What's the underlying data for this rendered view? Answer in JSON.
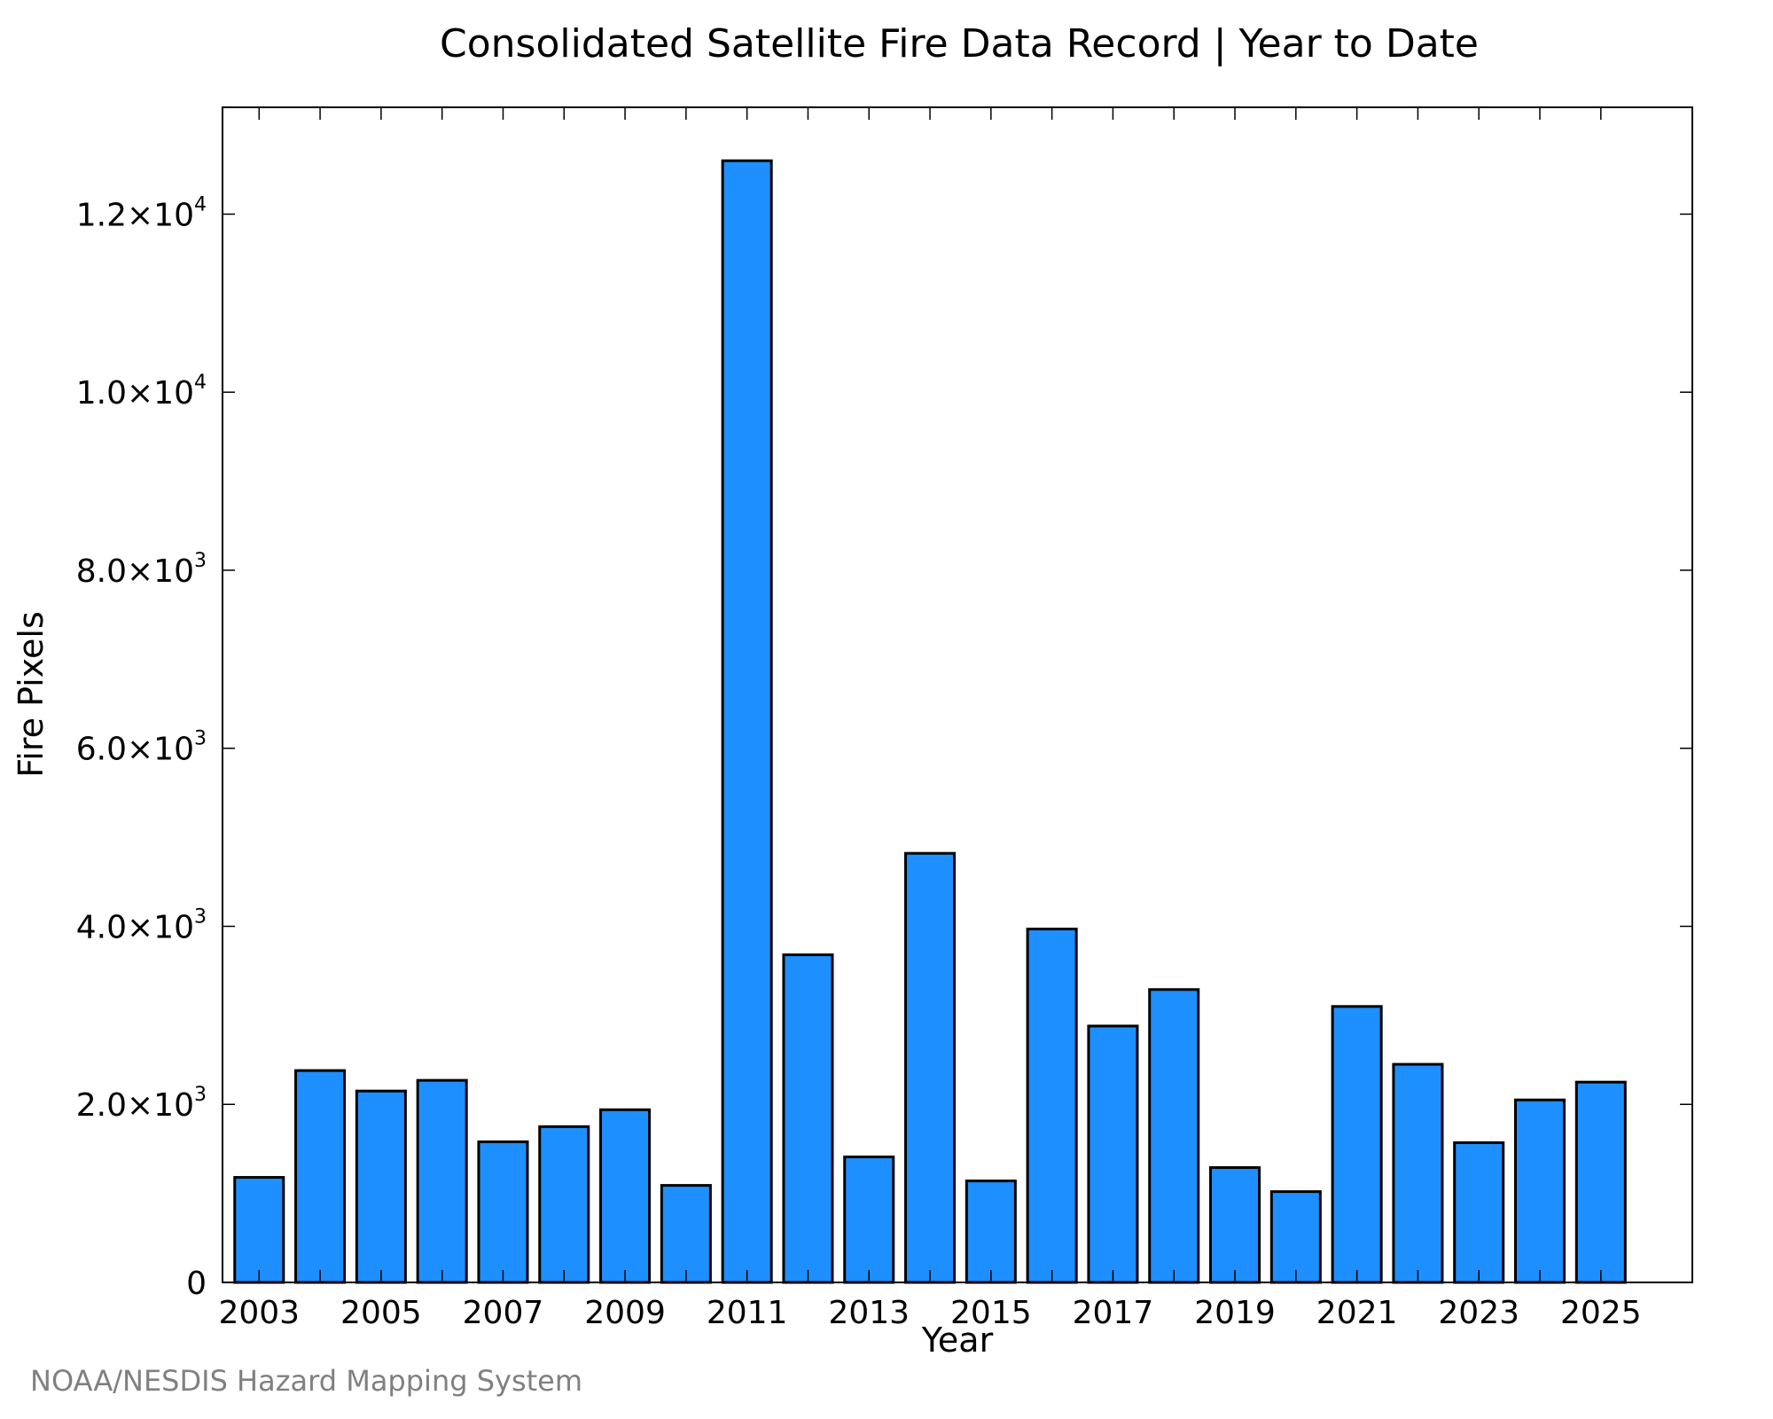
{
  "chart_data": {
    "type": "bar",
    "title": "Consolidated Satellite Fire Data Record | Year to Date",
    "xlabel": "Year",
    "ylabel": "Fire Pixels",
    "categories": [
      "2003",
      "2004",
      "2005",
      "2006",
      "2007",
      "2008",
      "2009",
      "2010",
      "2011",
      "2012",
      "2013",
      "2014",
      "2015",
      "2016",
      "2017",
      "2018",
      "2019",
      "2020",
      "2021",
      "2022",
      "2023",
      "2024",
      "2025"
    ],
    "values": [
      1180,
      2380,
      2150,
      2270,
      1580,
      1750,
      1940,
      1090,
      12600,
      3680,
      1410,
      4820,
      1140,
      3970,
      2880,
      3290,
      1290,
      1020,
      3100,
      2450,
      1570,
      2050,
      2250
    ],
    "ylim": [
      0,
      13200
    ],
    "xlim": [
      2002.4,
      2026.5
    ],
    "xticks": [
      {
        "value": 2003,
        "label": "2003"
      },
      {
        "value": 2005,
        "label": "2005"
      },
      {
        "value": 2007,
        "label": "2007"
      },
      {
        "value": 2009,
        "label": "2009"
      },
      {
        "value": 2011,
        "label": "2011"
      },
      {
        "value": 2013,
        "label": "2013"
      },
      {
        "value": 2015,
        "label": "2015"
      },
      {
        "value": 2017,
        "label": "2017"
      },
      {
        "value": 2019,
        "label": "2019"
      },
      {
        "value": 2021,
        "label": "2021"
      },
      {
        "value": 2023,
        "label": "2023"
      },
      {
        "value": 2025,
        "label": "2025"
      }
    ],
    "yticks": [
      {
        "value": 0,
        "mantissa": "0",
        "exponent": ""
      },
      {
        "value": 2000,
        "mantissa": "2.0×10",
        "exponent": "3"
      },
      {
        "value": 4000,
        "mantissa": "4.0×10",
        "exponent": "3"
      },
      {
        "value": 6000,
        "mantissa": "6.0×10",
        "exponent": "3"
      },
      {
        "value": 8000,
        "mantissa": "8.0×10",
        "exponent": "3"
      },
      {
        "value": 10000,
        "mantissa": "1.0×10",
        "exponent": "4"
      },
      {
        "value": 12000,
        "mantissa": "1.2×10",
        "exponent": "4"
      }
    ],
    "bar_color": "#1e8fff",
    "bar_edge_color": "#000000",
    "grid": false,
    "legend": false
  },
  "credit": "NOAA/NESDIS Hazard Mapping System"
}
